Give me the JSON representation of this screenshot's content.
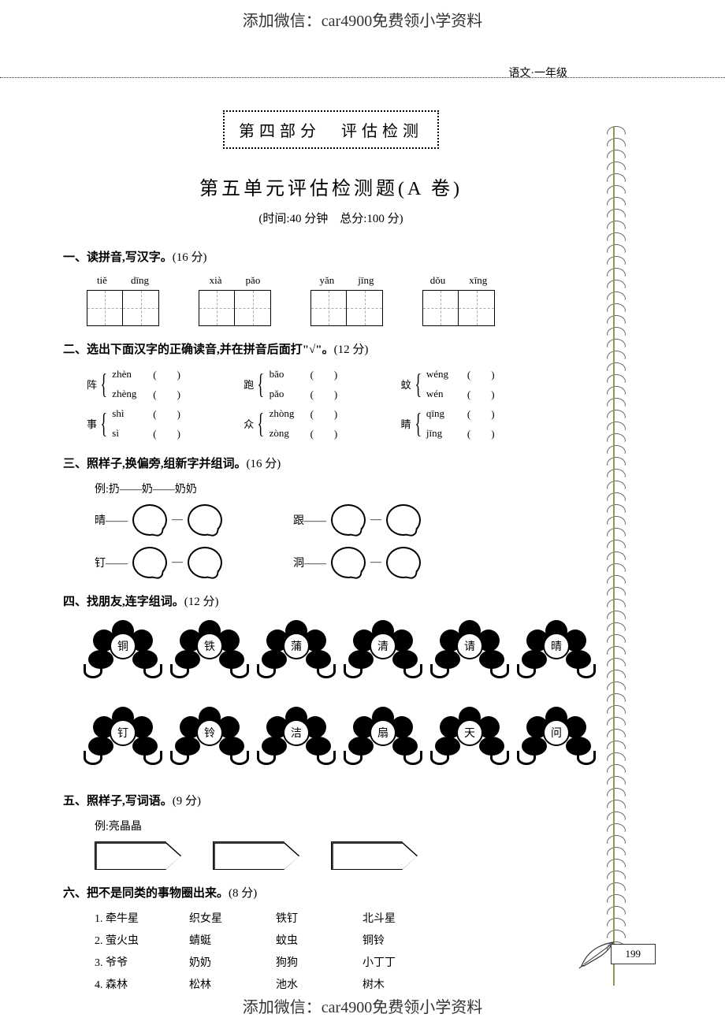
{
  "watermark": "添加微信：car4900免费领小学资料",
  "subject_grade": "语文·一年级",
  "section_label": "第四部分　评估检测",
  "main_title": "第五单元评估检测题(A 卷)",
  "time_score": "(时间:40 分钟　总分:100 分)",
  "q1": {
    "title": "一、读拼音,写汉字。",
    "pts": "(16 分)",
    "groups": [
      [
        "tiě",
        "dīng"
      ],
      [
        "xià",
        "pǎo"
      ],
      [
        "yǎn",
        "jīng"
      ],
      [
        "dǒu",
        "xīng"
      ]
    ]
  },
  "q2": {
    "title": "二、选出下面汉字的正确读音,并在拼音后面打\"√\"。",
    "pts": "(12 分)",
    "rows": [
      [
        {
          "char": "阵",
          "a": "zhèn",
          "b": "zhèng"
        },
        {
          "char": "跑",
          "a": "bǎo",
          "b": "pǎo"
        },
        {
          "char": "蚊",
          "a": "wéng",
          "b": "wén"
        }
      ],
      [
        {
          "char": "事",
          "a": "shì",
          "b": "sì"
        },
        {
          "char": "众",
          "a": "zhòng",
          "b": "zòng"
        },
        {
          "char": "睛",
          "a": "qīng",
          "b": "jīng"
        }
      ]
    ]
  },
  "q3": {
    "title": "三、照样子,换偏旁,组新字并组词。",
    "pts": "(16 分)",
    "example": "例:扔——奶——奶奶",
    "rows": [
      [
        "晴",
        "跟"
      ],
      [
        "钉",
        "洞"
      ]
    ]
  },
  "q4": {
    "title": "四、找朋友,连字组词。",
    "pts": "(12 分)",
    "row1": [
      "铜",
      "铁",
      "蒲",
      "清",
      "请",
      "晴"
    ],
    "row2": [
      "钉",
      "铃",
      "洁",
      "扇",
      "天",
      "问"
    ]
  },
  "q5": {
    "title": "五、照样子,写词语。",
    "pts": "(9 分)",
    "example": "例:亮晶晶",
    "blanks": 3
  },
  "q6": {
    "title": "六、把不是同类的事物圈出来。",
    "pts": "(8 分)",
    "rows": [
      [
        "1. 牵牛星",
        "织女星",
        "铁钉",
        "北斗星"
      ],
      [
        "2. 萤火虫",
        "蜻蜓",
        "蚊虫",
        "铜铃"
      ],
      [
        "3. 爷爷",
        "奶奶",
        "狗狗",
        "小丁丁"
      ],
      [
        "4. 森林",
        "松林",
        "池水",
        "树木"
      ]
    ]
  },
  "page_num": "199"
}
